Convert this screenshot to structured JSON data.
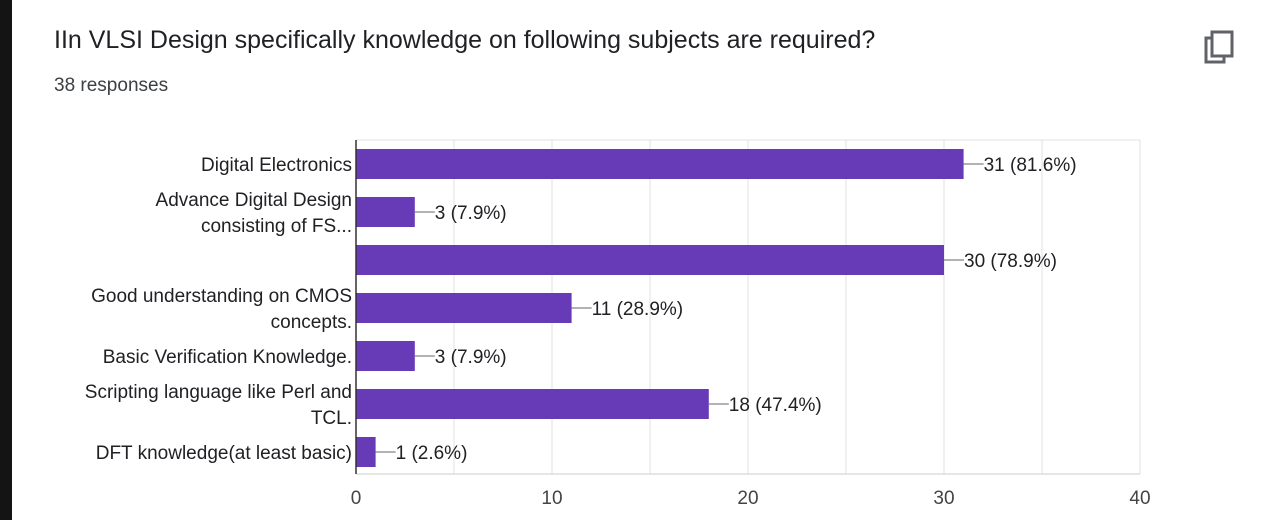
{
  "header": {
    "question": "IIn VLSI Design specifically knowledge on following subjects are required?",
    "responses": "38 responses",
    "copy_icon": "copy-icon"
  },
  "colors": {
    "bar": "#673ab7",
    "grid": "#e0e0e0",
    "axis": "#333333",
    "text": "#202124"
  },
  "chart_data": {
    "type": "bar",
    "orientation": "horizontal",
    "categories": [
      [
        "Digital Electronics"
      ],
      [
        "Advance Digital Design",
        "consisting of FS..."
      ],
      [
        ""
      ],
      [
        "Good understanding on CMOS",
        "concepts."
      ],
      [
        "Basic Verification Knowledge."
      ],
      [
        "Scripting language like Perl and",
        "TCL."
      ],
      [
        "DFT knowledge(at least basic)"
      ]
    ],
    "values": [
      31,
      3,
      30,
      11,
      3,
      18,
      1
    ],
    "data_labels": [
      "31 (81.6%)",
      "3 (7.9%)",
      "30 (78.9%)",
      "11 (28.9%)",
      "3 (7.9%)",
      "18 (47.4%)",
      "1 (2.6%)"
    ],
    "xlim": [
      0,
      40
    ],
    "xticks": [
      0,
      10,
      20,
      30,
      40
    ],
    "xtick_labels": [
      "0",
      "10",
      "20",
      "30",
      "40"
    ],
    "minor_grid_step": 5,
    "grid": true,
    "legend": "none"
  }
}
